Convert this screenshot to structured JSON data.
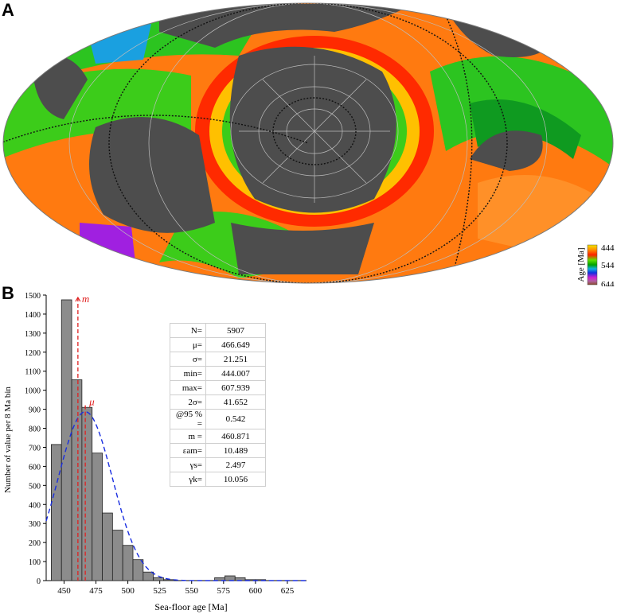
{
  "panel_a": {
    "letter": "A",
    "colorbar": {
      "label": "Age [Ma]",
      "ticks": [
        "444",
        "544",
        "644"
      ],
      "colors": [
        "#f2e400",
        "#ffa000",
        "#ff2a00",
        "#d41a00",
        "#2ad400",
        "#00a000",
        "#1ab0e0",
        "#1040e0",
        "#d020d0",
        "#a040a0",
        "#8a4a2a"
      ]
    },
    "colors": {
      "land": "#4d4d4d",
      "ocean_bg": "#ffffff",
      "grid": "#bdbdbd",
      "boundary": "#111111"
    }
  },
  "panel_b": {
    "letter": "B",
    "stats_table": [
      {
        "key": "N=",
        "value": "5907"
      },
      {
        "key": "μ=",
        "value": "466.649"
      },
      {
        "key": "σ=",
        "value": "21.251"
      },
      {
        "key": "min=",
        "value": "444.007"
      },
      {
        "key": "max=",
        "value": "607.939"
      },
      {
        "key": "2σ=",
        "value": "41.652"
      },
      {
        "key": "@95 % =",
        "value": "0.542"
      },
      {
        "key": "m =",
        "value": "460.871"
      },
      {
        "key": "εam=",
        "value": "10.489"
      },
      {
        "key": "γs=",
        "value": "2.497"
      },
      {
        "key": "γk=",
        "value": "10.056"
      }
    ]
  },
  "chart_data": {
    "type": "bar",
    "title": "",
    "xlabel": "Sea-floor age [Ma]",
    "ylabel": "Number of value per 8 Ma bin",
    "xlim": [
      436,
      640
    ],
    "ylim": [
      0,
      1500
    ],
    "x_ticks": [
      450,
      475,
      500,
      525,
      550,
      575,
      600,
      625
    ],
    "y_ticks": [
      0,
      100,
      200,
      300,
      400,
      500,
      600,
      700,
      800,
      900,
      1000,
      1100,
      1200,
      1300,
      1400,
      1500
    ],
    "bin_width": 8,
    "bins": [
      {
        "x0": 440,
        "count": 715
      },
      {
        "x0": 448,
        "count": 1475
      },
      {
        "x0": 456,
        "count": 1055
      },
      {
        "x0": 464,
        "count": 910
      },
      {
        "x0": 472,
        "count": 670
      },
      {
        "x0": 480,
        "count": 355
      },
      {
        "x0": 488,
        "count": 265
      },
      {
        "x0": 496,
        "count": 185
      },
      {
        "x0": 504,
        "count": 110
      },
      {
        "x0": 512,
        "count": 45
      },
      {
        "x0": 520,
        "count": 15
      },
      {
        "x0": 528,
        "count": 5
      },
      {
        "x0": 568,
        "count": 15
      },
      {
        "x0": 576,
        "count": 25
      },
      {
        "x0": 584,
        "count": 15
      },
      {
        "x0": 592,
        "count": 5
      },
      {
        "x0": 600,
        "count": 5
      }
    ],
    "normal_fit": {
      "mean": 466.649,
      "sd": 21.251,
      "n": 5907
    },
    "markers": [
      {
        "label": "m",
        "x": 460.871
      },
      {
        "label": "μ",
        "x": 466.649
      }
    ],
    "colors": {
      "bar_fill": "#8c8c8c",
      "bar_edge": "#222222",
      "fit_line": "#1a2ee0",
      "marker": "#e02020"
    }
  }
}
